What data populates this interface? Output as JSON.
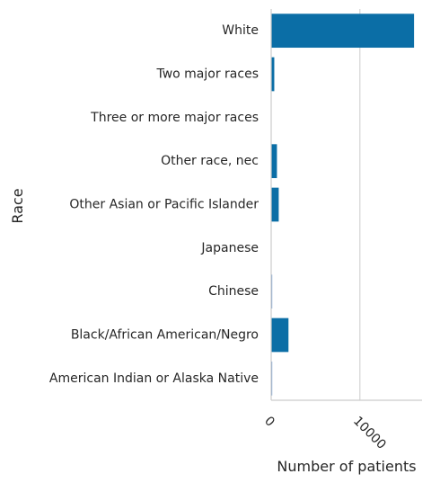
{
  "chart_data": {
    "type": "bar",
    "orientation": "horizontal",
    "title": "",
    "xlabel": "Number of patients",
    "ylabel": "Race",
    "xlim": [
      0,
      17000
    ],
    "xticks": [
      0,
      10000
    ],
    "xtick_labels": [
      "0",
      "10000"
    ],
    "xtick_rotation": -45,
    "grid": "vertical",
    "bar_color": "#0b6ea6",
    "small_bar_color": "#6f9bd1",
    "categories": [
      "White",
      "Two major races",
      "Three or more major races",
      "Other race, nec",
      "Other Asian or Pacific Islander",
      "Japanese",
      "Chinese",
      "Black/African American/Negro",
      "American Indian or Alaska Native"
    ],
    "values": [
      16100,
      350,
      0,
      650,
      850,
      0,
      120,
      1950,
      120
    ]
  }
}
